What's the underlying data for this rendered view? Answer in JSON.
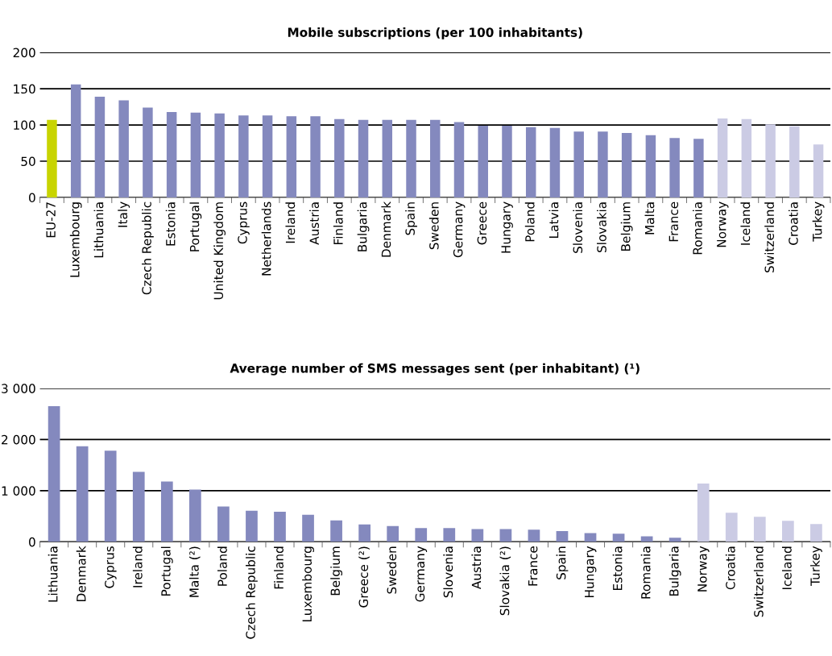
{
  "chart_data": [
    {
      "type": "bar",
      "title": "Mobile subscriptions (per 100 inhabitants)",
      "categories": [
        "EU-27",
        "Luxembourg",
        "Lithuania",
        "Italy",
        "Czech Republic",
        "Estonia",
        "Portugal",
        "United Kingdom",
        "Cyprus",
        "Netherlands",
        "Ireland",
        "Austria",
        "Finland",
        "Bulgaria",
        "Denmark",
        "Spain",
        "Sweden",
        "Germany",
        "Greece",
        "Hungary",
        "Poland",
        "Latvia",
        "Slovenia",
        "Slovakia",
        "Belgium",
        "Malta",
        "France",
        "Romania",
        "Norway",
        "Iceland",
        "Switzerland",
        "Croatia",
        "Turkey"
      ],
      "values": [
        107,
        156,
        139,
        134,
        124,
        118,
        117,
        116,
        113,
        113,
        112,
        112,
        108,
        107,
        107,
        107,
        107,
        104,
        99,
        99,
        97,
        96,
        91,
        91,
        89,
        86,
        82,
        81,
        109,
        108,
        101,
        98,
        73
      ],
      "colors": [
        "#c8d400",
        "#8489be",
        "#8489be",
        "#8489be",
        "#8489be",
        "#8489be",
        "#8489be",
        "#8489be",
        "#8489be",
        "#8489be",
        "#8489be",
        "#8489be",
        "#8489be",
        "#8489be",
        "#8489be",
        "#8489be",
        "#8489be",
        "#8489be",
        "#8489be",
        "#8489be",
        "#8489be",
        "#8489be",
        "#8489be",
        "#8489be",
        "#8489be",
        "#8489be",
        "#8489be",
        "#8489be",
        "#cbcbe4",
        "#cbcbe4",
        "#cbcbe4",
        "#cbcbe4",
        "#cbcbe4"
      ],
      "ylim": [
        0,
        200
      ],
      "yticks": [
        0,
        50,
        100,
        150,
        200
      ],
      "grid": "y"
    },
    {
      "type": "bar",
      "title": "Average number of SMS messages sent (per inhabitant) (¹)",
      "categories": [
        "Lithuania",
        "Denmark",
        "Cyprus",
        "Ireland",
        "Portugal",
        "Malta (²)",
        "Poland",
        "Czech Republic",
        "Finland",
        "Luxembourg",
        "Belgium",
        "Greece (²)",
        "Sweden",
        "Germany",
        "Slovenia",
        "Austria",
        "Slovakia (²)",
        "France",
        "Spain",
        "Hungary",
        "Estonia",
        "Romania",
        "Bulgaria",
        "Norway",
        "Croatia",
        "Switzerland",
        "Iceland",
        "Turkey"
      ],
      "values": [
        2650,
        1870,
        1780,
        1370,
        1180,
        1020,
        690,
        610,
        590,
        530,
        420,
        340,
        310,
        270,
        270,
        250,
        250,
        240,
        210,
        170,
        160,
        110,
        80,
        1140,
        570,
        490,
        410,
        350
      ],
      "colors": [
        "#8489be",
        "#8489be",
        "#8489be",
        "#8489be",
        "#8489be",
        "#8489be",
        "#8489be",
        "#8489be",
        "#8489be",
        "#8489be",
        "#8489be",
        "#8489be",
        "#8489be",
        "#8489be",
        "#8489be",
        "#8489be",
        "#8489be",
        "#8489be",
        "#8489be",
        "#8489be",
        "#8489be",
        "#8489be",
        "#8489be",
        "#cbcbe4",
        "#cbcbe4",
        "#cbcbe4",
        "#cbcbe4",
        "#cbcbe4"
      ],
      "ylim": [
        0,
        3000
      ],
      "yticks": [
        0,
        {
          "value": 1000,
          "label": "1 000"
        },
        {
          "value": 2000,
          "label": "2 000"
        },
        {
          "value": 3000,
          "label": "3 000"
        }
      ],
      "grid": "y"
    }
  ]
}
